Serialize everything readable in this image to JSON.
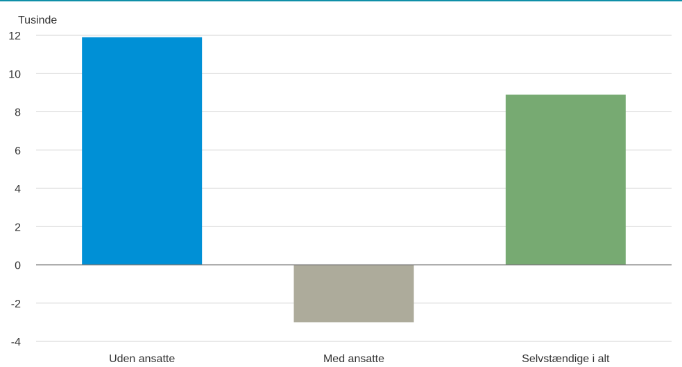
{
  "colors": {
    "top_rule": "#0f8fa8",
    "grid": "#d3d3d3",
    "zero_line": "#7a7a7a"
  },
  "chart_data": {
    "type": "bar",
    "unit_label": "Tusinde",
    "categories": [
      "Uden ansatte",
      "Med ansatte",
      "Selvstændige i alt"
    ],
    "values": [
      11.9,
      -3.0,
      8.9
    ],
    "bar_colors": [
      "#0090d6",
      "#adab9b",
      "#77aa72"
    ],
    "ylim": [
      -4,
      12
    ],
    "yticks": [
      -4,
      -2,
      0,
      2,
      4,
      6,
      8,
      10,
      12
    ],
    "ytick_labels": [
      "-4",
      "-2",
      "0",
      "2",
      "4",
      "6",
      "8",
      "10",
      "12"
    ],
    "grid": true,
    "legend": "none"
  }
}
